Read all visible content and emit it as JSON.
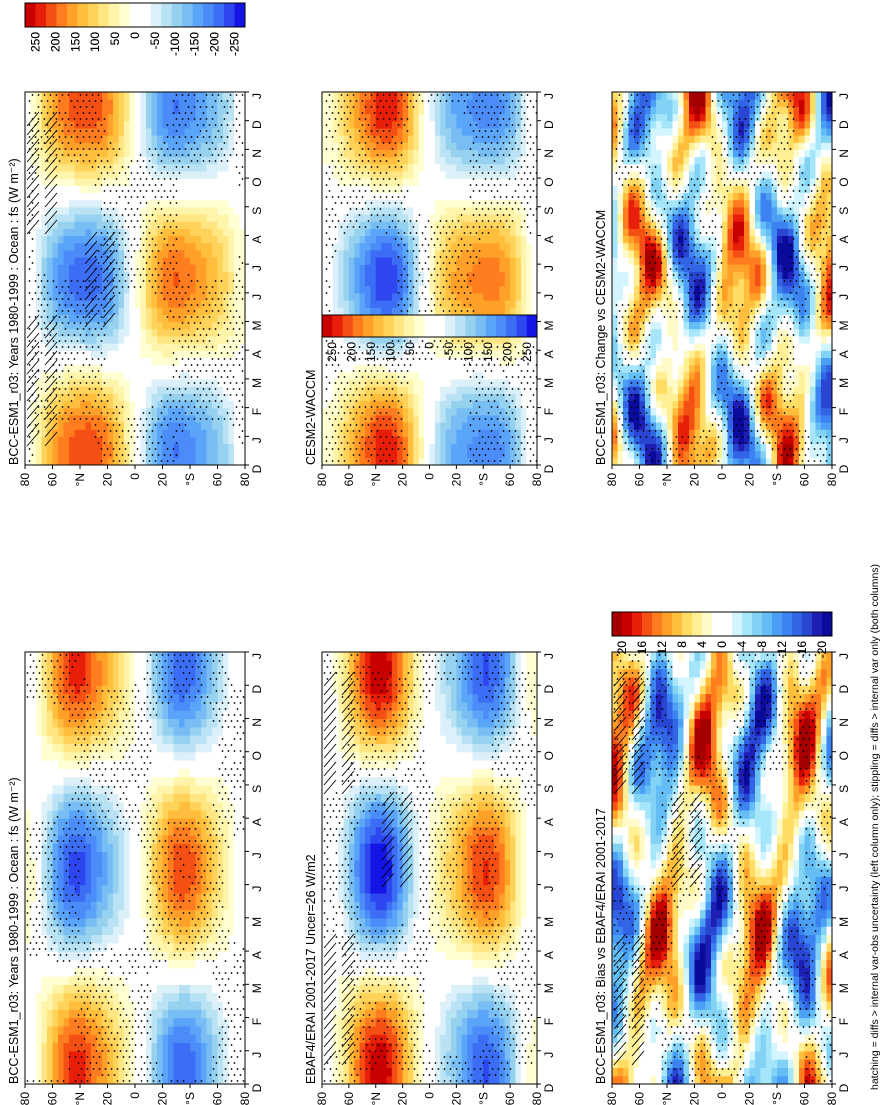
{
  "footnote": "hatching = diffs > internal var-obs uncertainty (left column only); stippling = diffs > internal var only (both columns)",
  "palettes": {
    "absolute": [
      "#1414e6",
      "#2d46f0",
      "#3c6ef5",
      "#4b8cf8",
      "#5aa5fa",
      "#78bef5",
      "#96d2f0",
      "#b9e3f5",
      "#dcf0fa",
      "#ffffff",
      "#ffffff",
      "#ffffd2",
      "#fff5aa",
      "#ffe682",
      "#ffd25a",
      "#ffbe3c",
      "#ffa028",
      "#ff7d1e",
      "#f55014",
      "#e61e0a",
      "#c80000"
    ],
    "difference": [
      "#0a0a9b",
      "#1e1eb4",
      "#2846d2",
      "#3264e6",
      "#3c82f0",
      "#4ba0f5",
      "#64bef5",
      "#82d2f5",
      "#a5e6fa",
      "#d2f5ff",
      "#ffffff",
      "#ffffff",
      "#fffac8",
      "#fff096",
      "#ffdc64",
      "#ffbe3c",
      "#ffa028",
      "#ff7d1e",
      "#f55014",
      "#e61e0a",
      "#c80000",
      "#a50000"
    ]
  },
  "chart_data": [
    {
      "type": "heatmap",
      "panel": "model-climatology",
      "title": "BCC-ESM1_r03: Years 1980-1999 : Ocean : fs (W m⁻²)",
      "field": "net surface energy flux over ocean, annual cycle by latitude",
      "x_ticks": [
        "D",
        "J",
        "F",
        "M",
        "A",
        "M",
        "J",
        "J",
        "A",
        "S",
        "O",
        "N",
        "D",
        "J"
      ],
      "y_ticks": [
        "80",
        "60",
        "°N",
        "20",
        "0",
        "20",
        "°S",
        "60",
        "80"
      ],
      "colorbar_ticks": [
        "250",
        "200",
        "150",
        "100",
        "50",
        "0",
        "-50",
        "-100",
        "-150",
        "-200",
        "-250"
      ],
      "ylim": [
        -80,
        80
      ],
      "range": [
        -250,
        250
      ],
      "palette": "absolute",
      "amplitude": 230,
      "hatching": true,
      "stippling": true
    },
    {
      "type": "heatmap",
      "panel": "model-climatology",
      "title": "BCC-ESM1_r03: Years 1980-1999 : Ocean : fs (W m⁻²)",
      "field": "net surface energy flux over ocean, annual cycle by latitude",
      "x_ticks": [
        "D",
        "J",
        "F",
        "M",
        "A",
        "M",
        "J",
        "J",
        "A",
        "S",
        "O",
        "N",
        "D",
        "J"
      ],
      "y_ticks": [
        "80",
        "60",
        "°N",
        "20",
        "0",
        "20",
        "°S",
        "60",
        "80"
      ],
      "colorbar_ticks": [
        "250",
        "200",
        "150",
        "100",
        "50",
        "0",
        "-50",
        "-100",
        "-150",
        "-200",
        "-250"
      ],
      "ylim": [
        -80,
        80
      ],
      "range": [
        -250,
        250
      ],
      "palette": "absolute",
      "amplitude": 220,
      "hatching": false,
      "stippling": true
    },
    {
      "type": "heatmap",
      "panel": "observations",
      "title": "EBAF4/ERAI 2001-2017 Uncer=26 W/m2",
      "field": "observed net surface energy flux, annual cycle by latitude",
      "x_ticks": [
        "D",
        "J",
        "F",
        "M",
        "A",
        "M",
        "J",
        "J",
        "A",
        "S",
        "O",
        "N",
        "D",
        "J"
      ],
      "y_ticks": [
        "80",
        "60",
        "°N",
        "20",
        "0",
        "20",
        "°S",
        "60",
        "80"
      ],
      "colorbar_ticks": [
        "250",
        "200",
        "150",
        "100",
        "50",
        "0",
        "-50",
        "-100",
        "-150",
        "-200",
        "-250"
      ],
      "ylim": [
        -80,
        80
      ],
      "range": [
        -250,
        250
      ],
      "palette": "absolute",
      "amplitude": 235,
      "hatching": true,
      "stippling": true
    },
    {
      "type": "heatmap",
      "panel": "comparison-model",
      "title": "CESM2-WACCM",
      "field": "net surface energy flux over ocean, annual cycle by latitude",
      "x_ticks": [
        "D",
        "J",
        "F",
        "M",
        "A",
        "M",
        "J",
        "J",
        "A",
        "S",
        "O",
        "N",
        "D",
        "J"
      ],
      "y_ticks": [
        "80",
        "60",
        "°N",
        "20",
        "0",
        "20",
        "°S",
        "60",
        "80"
      ],
      "colorbar_ticks": [
        "250",
        "200",
        "150",
        "100",
        "50",
        "0",
        "-50",
        "-100",
        "-150",
        "-200",
        "-250"
      ],
      "ylim": [
        -80,
        80
      ],
      "range": [
        -250,
        250
      ],
      "palette": "absolute",
      "amplitude": 230,
      "hatching": false,
      "stippling": true
    },
    {
      "type": "heatmap",
      "panel": "bias",
      "title": "BCC-ESM1_r03: Bias vs EBAF4/ERAI 2001-2017",
      "field": "model minus observations",
      "x_ticks": [
        "D",
        "J",
        "F",
        "M",
        "A",
        "M",
        "J",
        "J",
        "A",
        "S",
        "O",
        "N",
        "D",
        "J"
      ],
      "y_ticks": [
        "80",
        "60",
        "°N",
        "20",
        "0",
        "20",
        "°S",
        "60",
        "80"
      ],
      "colorbar_ticks": [
        "20",
        "16",
        "12",
        "8",
        "4",
        "0",
        "-4",
        "-8",
        "-12",
        "-16",
        "-20"
      ],
      "ylim": [
        -80,
        80
      ],
      "range": [
        -22,
        22
      ],
      "palette": "difference",
      "amplitude": 19,
      "hatching": true,
      "stippling": true
    },
    {
      "type": "heatmap",
      "panel": "change",
      "title": "BCC-ESM1_r03: Change vs CESM2-WACCM",
      "field": "model minus comparison model",
      "x_ticks": [
        "D",
        "J",
        "F",
        "M",
        "A",
        "M",
        "J",
        "J",
        "A",
        "S",
        "O",
        "N",
        "D",
        "J"
      ],
      "y_ticks": [
        "80",
        "60",
        "°N",
        "20",
        "0",
        "20",
        "°S",
        "60",
        "80"
      ],
      "colorbar_ticks": [
        "20",
        "16",
        "12",
        "8",
        "4",
        "0",
        "-4",
        "-8",
        "-12",
        "-16",
        "-20"
      ],
      "ylim": [
        -80,
        80
      ],
      "range": [
        -22,
        22
      ],
      "palette": "difference",
      "amplitude": 18,
      "hatching": false,
      "stippling": true
    }
  ]
}
